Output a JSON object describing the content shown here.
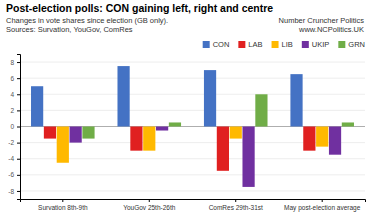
{
  "chart_data": {
    "type": "bar",
    "title": "Post-election polls: CON gaining left, right and centre",
    "subtitle": [
      "Changes in vote shares since election (GB only).",
      "Sources: Survation, YouGov, ComRes"
    ],
    "annotations": [
      "Number Cruncher Politics",
      "www.NCPolitics.UK"
    ],
    "categories": [
      "Survation 8th-9th",
      "YouGov 25th-26th",
      "ComRes 29th-31st",
      "May post-election average"
    ],
    "series": [
      {
        "name": "CON",
        "color": "#4472C4",
        "values": [
          5.0,
          7.5,
          7.0,
          6.5
        ]
      },
      {
        "name": "LAB",
        "color": "#E02020",
        "values": [
          -1.5,
          -3.0,
          -5.5,
          -3.0
        ]
      },
      {
        "name": "LIB",
        "color": "#FFB900",
        "values": [
          -4.5,
          -3.0,
          -1.5,
          -2.5
        ]
      },
      {
        "name": "UKIP",
        "color": "#7030A0",
        "values": [
          -2.0,
          -0.5,
          -7.5,
          -3.5
        ]
      },
      {
        "name": "GRN",
        "color": "#70AD47",
        "values": [
          -1.5,
          0.5,
          4.0,
          0.5
        ]
      }
    ],
    "ylim": [
      -9,
      9
    ],
    "yticks": [
      -8,
      -6,
      -4,
      -2,
      0,
      2,
      4,
      6,
      8
    ],
    "grid": true,
    "legend": "upper right"
  }
}
